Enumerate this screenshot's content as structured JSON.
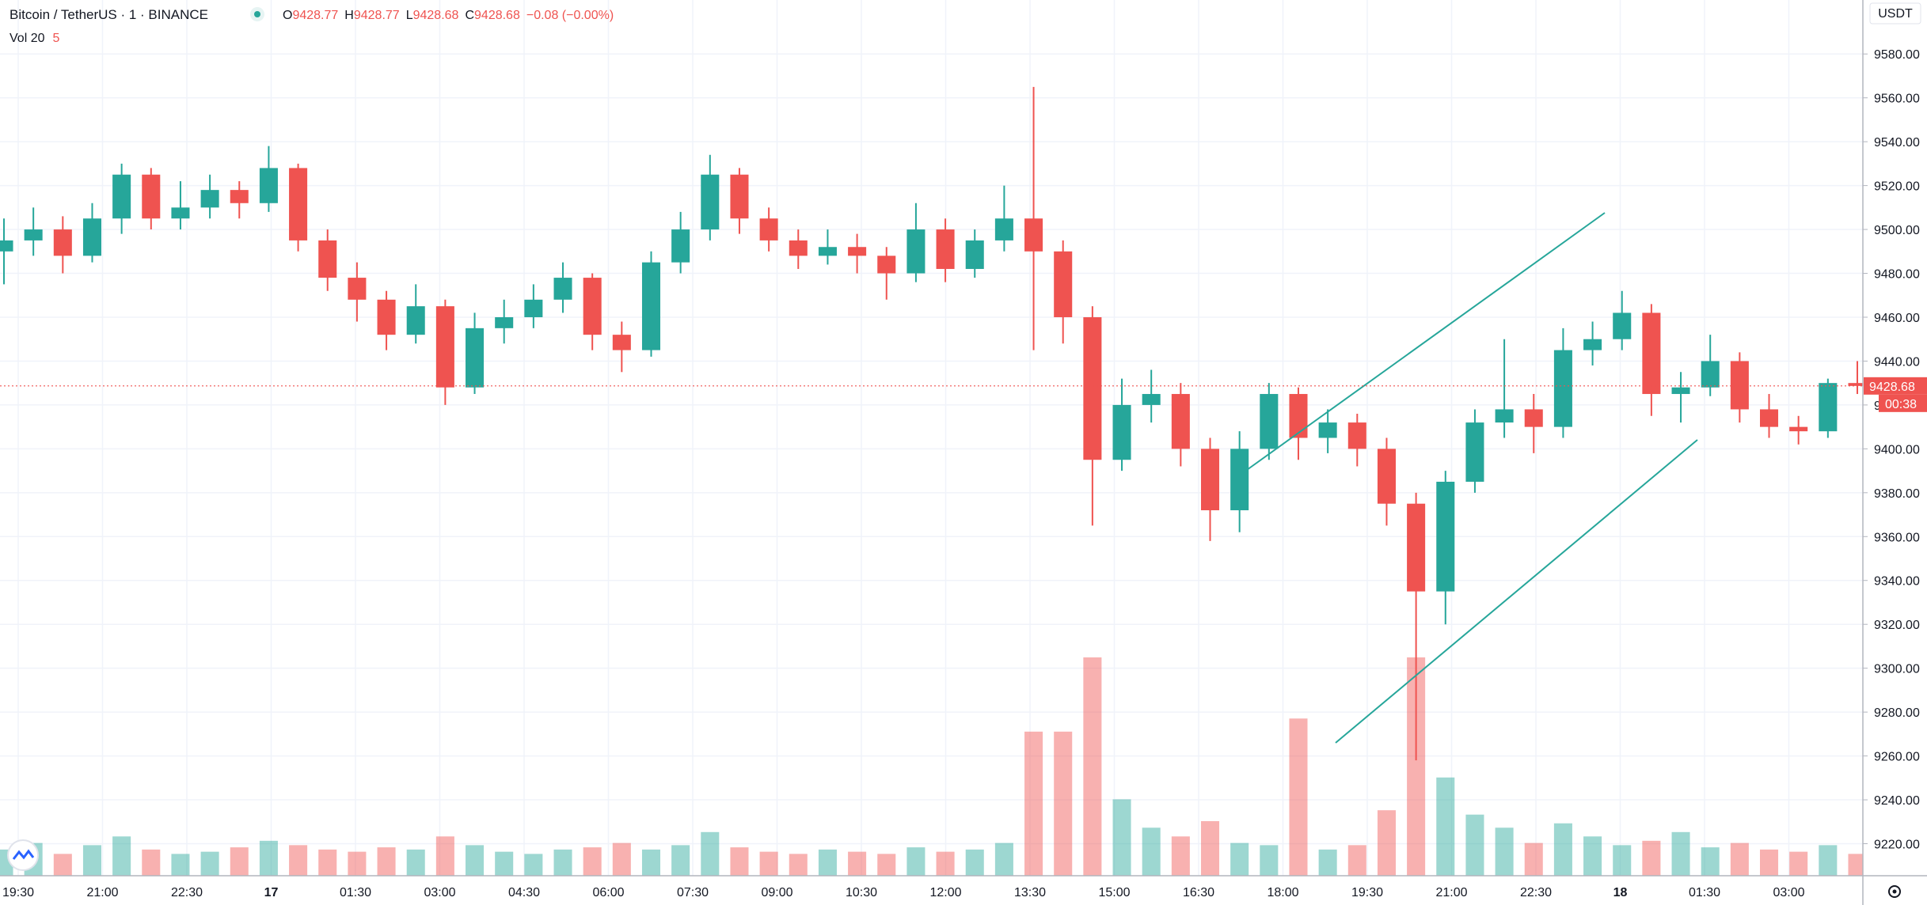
{
  "header": {
    "symbol": "Bitcoin / TetherUS · 1 · BINANCE",
    "ohlc": [
      {
        "label": "O",
        "value": 9428.77
      },
      {
        "label": "H",
        "value": 9428.77
      },
      {
        "label": "L",
        "value": 9428.68
      },
      {
        "label": "C",
        "value": 9428.68
      }
    ],
    "change": "−0.08 (−0.00%)",
    "volume_label": "Vol 20",
    "volume_value": 5
  },
  "chart_data": {
    "type": "candlestick",
    "currency": "USDT",
    "colors": {
      "up": "#26a69a",
      "down": "#ef5350"
    },
    "ylim": [
      9205.4,
      9604.6
    ],
    "yticks": [
      {
        "value": 9220,
        "label": "9220.00"
      },
      {
        "value": 9240,
        "label": "9240.00"
      },
      {
        "value": 9260,
        "label": "9260.00"
      },
      {
        "value": 9280,
        "label": "9280.00"
      },
      {
        "value": 9300,
        "label": "9300.00"
      },
      {
        "value": 9320,
        "label": "9320.00"
      },
      {
        "value": 9340,
        "label": "9340.00"
      },
      {
        "value": 9360,
        "label": "9360.00"
      },
      {
        "value": 9380,
        "label": "9380.00"
      },
      {
        "value": 9400,
        "label": "9400.00"
      },
      {
        "value": 9420,
        "label": "9420.00"
      },
      {
        "value": 9440,
        "label": "9440.00"
      },
      {
        "value": 9460,
        "label": "9460.00"
      },
      {
        "value": 9480,
        "label": "9480.00"
      },
      {
        "value": 9500,
        "label": "9500.00"
      },
      {
        "value": 9520,
        "label": "9520.00"
      },
      {
        "value": 9540,
        "label": "9540.00"
      },
      {
        "value": 9560,
        "label": "9560.00"
      },
      {
        "value": 9580,
        "label": "9580.00"
      }
    ],
    "x_tick_labels": [
      "19:30",
      "21:00",
      "22:30",
      "17",
      "01:30",
      "03:00",
      "04:30",
      "06:00",
      "07:30",
      "09:00",
      "10:30",
      "12:00",
      "13:30",
      "15:00",
      "16:30",
      "18:00",
      "19:30",
      "21:00",
      "22:30",
      "18",
      "01:30",
      "03:00"
    ],
    "open": [
      9490,
      9495,
      9500,
      9488,
      9505,
      9525,
      9505,
      9510,
      9518,
      9512,
      9528,
      9495,
      9478,
      9468,
      9452,
      9465,
      9428,
      9455,
      9460,
      9468,
      9478,
      9452,
      9445,
      9485,
      9500,
      9525,
      9505,
      9495,
      9488,
      9492,
      9488,
      9480,
      9500,
      9482,
      9495,
      9505,
      9490,
      9460,
      9395,
      9420,
      9425,
      9400,
      9372,
      9400,
      9425,
      9405,
      9412,
      9400,
      9375,
      9335,
      9385,
      9412,
      9418,
      9410,
      9445,
      9450,
      9462,
      9425,
      9428,
      9440,
      9418,
      9410,
      9408,
      9430
    ],
    "high": [
      9505,
      9510,
      9506,
      9512,
      9530,
      9528,
      9522,
      9525,
      9522,
      9538,
      9530,
      9500,
      9485,
      9472,
      9475,
      9468,
      9462,
      9468,
      9475,
      9485,
      9480,
      9458,
      9490,
      9508,
      9534,
      9528,
      9510,
      9500,
      9500,
      9498,
      9492,
      9512,
      9505,
      9500,
      9520,
      9565,
      9495,
      9465,
      9432,
      9436,
      9430,
      9405,
      9408,
      9430,
      9428,
      9418,
      9416,
      9405,
      9380,
      9390,
      9418,
      9450,
      9425,
      9455,
      9458,
      9472,
      9466,
      9435,
      9452,
      9444,
      9425,
      9415,
      9432,
      9440
    ],
    "low": [
      9475,
      9488,
      9480,
      9485,
      9498,
      9500,
      9500,
      9505,
      9505,
      9508,
      9490,
      9472,
      9458,
      9445,
      9448,
      9420,
      9425,
      9448,
      9455,
      9462,
      9445,
      9435,
      9442,
      9480,
      9495,
      9498,
      9490,
      9482,
      9484,
      9480,
      9468,
      9476,
      9476,
      9478,
      9490,
      9445,
      9448,
      9365,
      9390,
      9412,
      9392,
      9358,
      9362,
      9395,
      9395,
      9398,
      9392,
      9365,
      9258,
      9320,
      9380,
      9405,
      9398,
      9405,
      9438,
      9445,
      9415,
      9412,
      9424,
      9412,
      9405,
      9402,
      9405,
      9425
    ],
    "close": [
      9495,
      9500,
      9488,
      9505,
      9525,
      9505,
      9510,
      9518,
      9512,
      9528,
      9495,
      9478,
      9468,
      9452,
      9465,
      9428,
      9455,
      9460,
      9468,
      9478,
      9452,
      9445,
      9485,
      9500,
      9525,
      9505,
      9495,
      9488,
      9492,
      9488,
      9480,
      9500,
      9482,
      9495,
      9505,
      9490,
      9460,
      9395,
      9420,
      9425,
      9400,
      9372,
      9400,
      9425,
      9405,
      9412,
      9400,
      9375,
      9335,
      9385,
      9412,
      9418,
      9410,
      9445,
      9450,
      9462,
      9425,
      9428,
      9440,
      9418,
      9410,
      9408,
      9430,
      9428.68
    ],
    "volume": [
      12,
      15,
      10,
      14,
      18,
      12,
      10,
      11,
      13,
      16,
      14,
      12,
      11,
      13,
      12,
      18,
      14,
      11,
      10,
      12,
      13,
      15,
      12,
      14,
      20,
      13,
      11,
      10,
      12,
      11,
      10,
      13,
      11,
      12,
      15,
      66,
      66,
      100,
      35,
      22,
      18,
      25,
      15,
      14,
      72,
      12,
      14,
      30,
      100,
      45,
      28,
      22,
      15,
      24,
      18,
      14,
      16,
      20,
      13,
      15,
      12,
      11,
      14,
      10
    ],
    "last_price": 9428.68,
    "countdown": "00:38"
  }
}
